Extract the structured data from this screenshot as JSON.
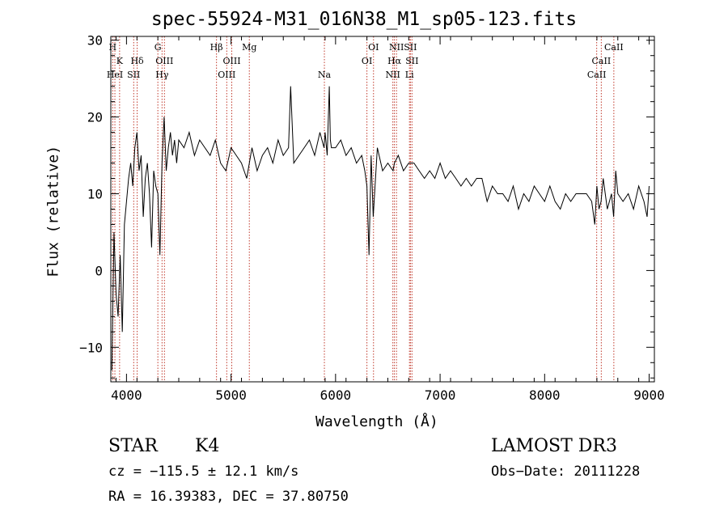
{
  "chart_data": {
    "type": "line",
    "title": "spec-55924-M31_016N38_M1_sp05-123.fits",
    "xlabel": "Wavelength (Å)",
    "ylabel": "Flux (relative)",
    "xlim": [
      3850,
      9050
    ],
    "ylim": [
      -14.5,
      30.5
    ],
    "x_ticks": [
      4000,
      5000,
      6000,
      7000,
      8000,
      9000
    ],
    "x_tick_labels": [
      "4000",
      "5000",
      "6000",
      "7000",
      "8000",
      "9000"
    ],
    "y_ticks": [
      -10,
      0,
      10,
      20,
      30
    ],
    "y_tick_labels": [
      "−10",
      "0",
      "10",
      "20",
      "30"
    ],
    "grid": false,
    "line_color": "#000000",
    "marker_color": "#c0392b",
    "series": [
      {
        "name": "flux",
        "x": [
          3860,
          3880,
          3900,
          3920,
          3940,
          3960,
          3980,
          4000,
          4020,
          4040,
          4060,
          4080,
          4100,
          4120,
          4140,
          4160,
          4180,
          4200,
          4220,
          4240,
          4260,
          4280,
          4300,
          4320,
          4340,
          4360,
          4380,
          4400,
          4420,
          4440,
          4460,
          4480,
          4500,
          4550,
          4600,
          4650,
          4700,
          4750,
          4800,
          4850,
          4900,
          4950,
          5000,
          5050,
          5100,
          5150,
          5200,
          5250,
          5300,
          5350,
          5400,
          5450,
          5500,
          5550,
          5570,
          5600,
          5650,
          5700,
          5750,
          5800,
          5850,
          5890,
          5900,
          5920,
          5940,
          5950,
          5960,
          6000,
          6050,
          6100,
          6150,
          6200,
          6250,
          6280,
          6300,
          6320,
          6340,
          6360,
          6400,
          6450,
          6500,
          6550,
          6563,
          6600,
          6650,
          6700,
          6750,
          6800,
          6850,
          6900,
          6950,
          7000,
          7050,
          7100,
          7150,
          7200,
          7250,
          7300,
          7350,
          7400,
          7450,
          7500,
          7550,
          7600,
          7650,
          7700,
          7750,
          7800,
          7850,
          7900,
          7950,
          8000,
          8050,
          8100,
          8150,
          8200,
          8250,
          8300,
          8350,
          8400,
          8450,
          8480,
          8500,
          8520,
          8540,
          8560,
          8600,
          8640,
          8660,
          8680,
          8700,
          8750,
          8800,
          8850,
          8900,
          8950,
          8980,
          9000
        ],
        "y": [
          -13,
          5,
          -3,
          -6,
          2,
          -8,
          6,
          9,
          12,
          14,
          11,
          16,
          18,
          13,
          15,
          7,
          12,
          14,
          10,
          3,
          13,
          11,
          10,
          2,
          14,
          20,
          13,
          16,
          18,
          15,
          17,
          14,
          17,
          16,
          18,
          15,
          17,
          16,
          15,
          17,
          14,
          13,
          16,
          15,
          14,
          12,
          16,
          13,
          15,
          16,
          14,
          17,
          15,
          16,
          24,
          14,
          15,
          16,
          17,
          15,
          18,
          16,
          18,
          15,
          24,
          17,
          16,
          16,
          17,
          15,
          16,
          14,
          15,
          13,
          11,
          2,
          15,
          7,
          16,
          13,
          14,
          13,
          14,
          15,
          13,
          14,
          14,
          13,
          12,
          13,
          12,
          14,
          12,
          13,
          12,
          11,
          12,
          11,
          12,
          12,
          9,
          11,
          10,
          10,
          9,
          11,
          8,
          10,
          9,
          11,
          10,
          9,
          11,
          9,
          8,
          10,
          9,
          10,
          10,
          10,
          9,
          6,
          11,
          8,
          9,
          12,
          8,
          10,
          7,
          13,
          10,
          9,
          10,
          8,
          11,
          9,
          7,
          11
        ]
      }
    ],
    "line_markers": [
      {
        "wavelength": 3868,
        "label": "H",
        "row": 0
      },
      {
        "wavelength": 3934,
        "label": "K",
        "row": 1
      },
      {
        "wavelength": 3889,
        "label": "HeI",
        "row": 2
      },
      {
        "wavelength": 4069,
        "label": "SII",
        "row": 2
      },
      {
        "wavelength": 4102,
        "label": "Hδ",
        "row": 1
      },
      {
        "wavelength": 4300,
        "label": "G",
        "row": 0
      },
      {
        "wavelength": 4340,
        "label": "Hγ",
        "row": 2
      },
      {
        "wavelength": 4363,
        "label": "OIII",
        "row": 1
      },
      {
        "wavelength": 4861,
        "label": "Hβ",
        "row": 0
      },
      {
        "wavelength": 4959,
        "label": "OIII",
        "row": 2
      },
      {
        "wavelength": 5007,
        "label": "OIII",
        "row": 1
      },
      {
        "wavelength": 5175,
        "label": "Mg",
        "row": 0
      },
      {
        "wavelength": 5893,
        "label": "Na",
        "row": 2
      },
      {
        "wavelength": 6300,
        "label": "OI",
        "row": 1
      },
      {
        "wavelength": 6363,
        "label": "OI",
        "row": 0
      },
      {
        "wavelength": 6548,
        "label": "NII",
        "row": 2
      },
      {
        "wavelength": 6563,
        "label": "Hα",
        "row": 1
      },
      {
        "wavelength": 6583,
        "label": "NII",
        "row": 0
      },
      {
        "wavelength": 6707,
        "label": "Li",
        "row": 2
      },
      {
        "wavelength": 6716,
        "label": "SII",
        "row": 0
      },
      {
        "wavelength": 6731,
        "label": "SII",
        "row": 1
      },
      {
        "wavelength": 8498,
        "label": "CaII",
        "row": 2
      },
      {
        "wavelength": 8542,
        "label": "CaII",
        "row": 1
      },
      {
        "wavelength": 8662,
        "label": "CaII",
        "row": 0
      }
    ]
  },
  "info": {
    "class_label": "STAR",
    "subclass": "K4",
    "survey": "LAMOST DR3",
    "velocity": "cz = −115.5 ± 12.1 km/s",
    "obs_date": "Obs−Date: 20111228",
    "coords": "RA =  16.39383, DEC =  37.80750"
  }
}
